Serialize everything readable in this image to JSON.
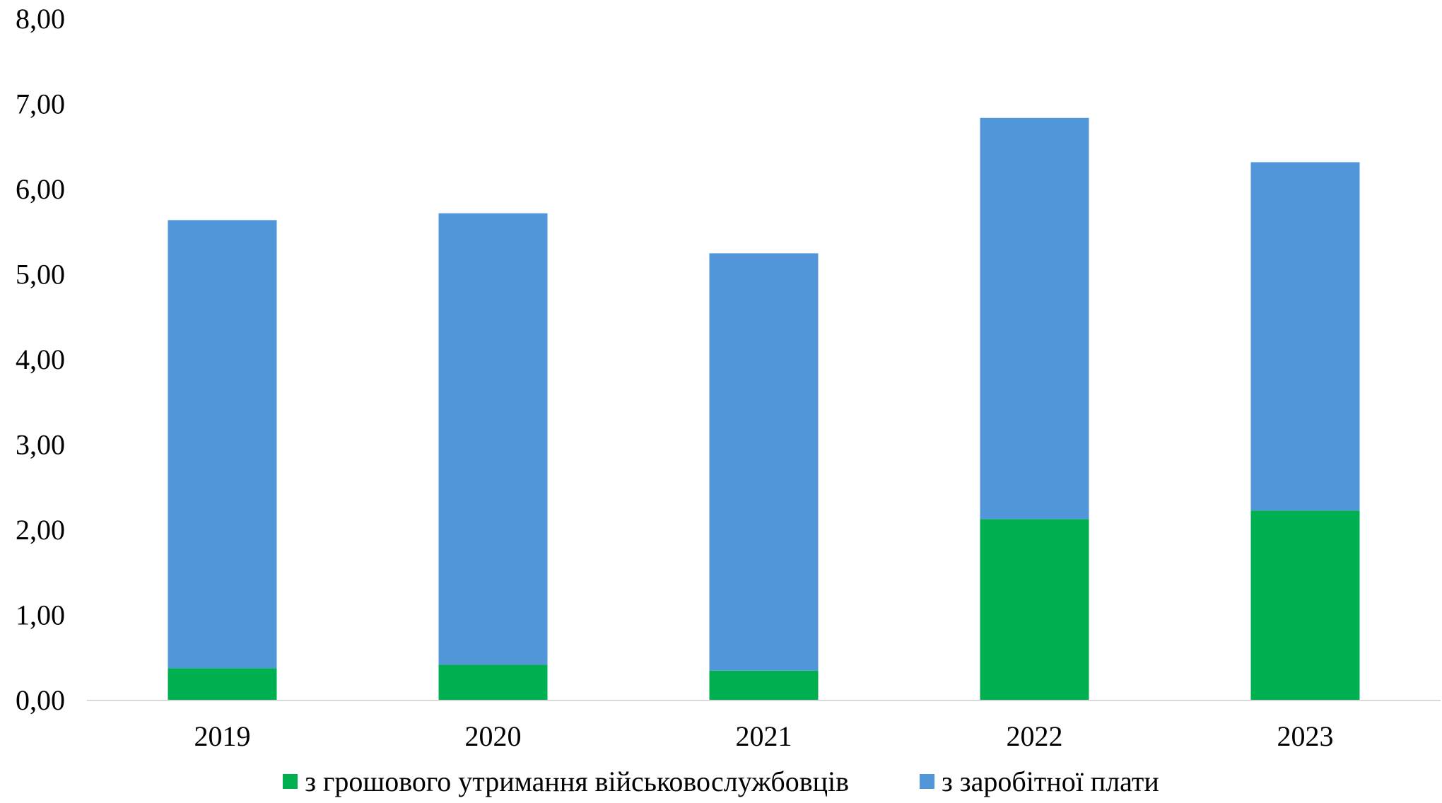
{
  "chart_data": {
    "type": "bar",
    "stacked": true,
    "categories": [
      "2019",
      "2020",
      "2021",
      "2022",
      "2023"
    ],
    "series": [
      {
        "name": "з грошового утримання військовослужбовців",
        "color": "#00B050",
        "values": [
          0.38,
          0.42,
          0.35,
          2.13,
          2.23
        ]
      },
      {
        "name": "з заробітної плати",
        "color": "#5096D8",
        "values": [
          5.26,
          5.3,
          4.9,
          4.71,
          4.09
        ]
      }
    ],
    "ylim": [
      0,
      8
    ],
    "yticks": [
      "0,00",
      "1,00",
      "2,00",
      "3,00",
      "4,00",
      "5,00",
      "6,00",
      "7,00",
      "8,00"
    ],
    "grid": false,
    "legend_position": "bottom",
    "title": "",
    "xlabel": "",
    "ylabel": ""
  }
}
